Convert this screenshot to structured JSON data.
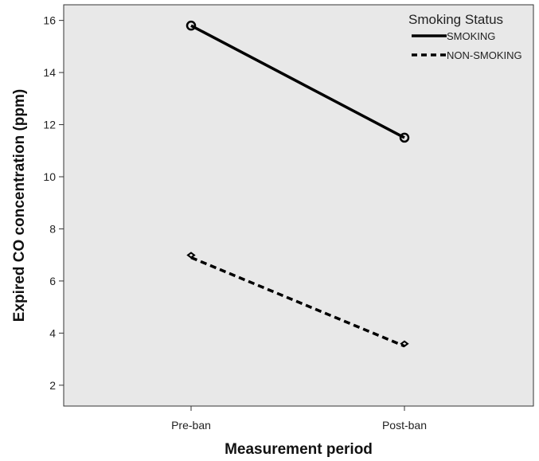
{
  "chart_data": {
    "type": "line",
    "xlabel": "Measurement period",
    "ylabel": "Expired CO concentration (ppm)",
    "categories": [
      "Pre-ban",
      "Post-ban"
    ],
    "ylim": [
      1.2,
      16.6
    ],
    "yticks": [
      2,
      4,
      6,
      8,
      10,
      12,
      14,
      16
    ],
    "grid": false,
    "plot_background": "#e8e8e8",
    "legend": {
      "title": "Smoking Status",
      "position": "top-right"
    },
    "series": [
      {
        "name": "SMOKING",
        "values": [
          15.8,
          11.5
        ],
        "style": "solid",
        "marker": "circle",
        "color": "#000000"
      },
      {
        "name": "NON-SMOKING",
        "values": [
          6.9,
          3.5
        ],
        "style": "dashed",
        "marker": "none",
        "color": "#000000"
      }
    ]
  }
}
